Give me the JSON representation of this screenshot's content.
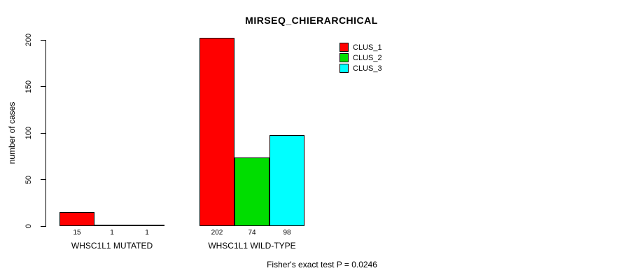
{
  "chart_data": {
    "type": "bar",
    "title": "MIRSEQ_CHIERARCHICAL",
    "ylabel": "number of cases",
    "ylim": [
      0,
      200
    ],
    "yticks": [
      0,
      50,
      100,
      150,
      200
    ],
    "grid": false,
    "legend_position": "top-right",
    "groups": [
      {
        "label": "WHSC1L1 MUTATED",
        "values": [
          15,
          1,
          1
        ]
      },
      {
        "label": "WHSC1L1 WILD-TYPE",
        "values": [
          202,
          74,
          98
        ]
      }
    ],
    "series": [
      {
        "name": "CLUS_1",
        "color": "#FF0000"
      },
      {
        "name": "CLUS_2",
        "color": "#00DD00"
      },
      {
        "name": "CLUS_3",
        "color": "#00FFFF"
      }
    ],
    "annotation": "Fisher's exact test P = 0.0246"
  }
}
